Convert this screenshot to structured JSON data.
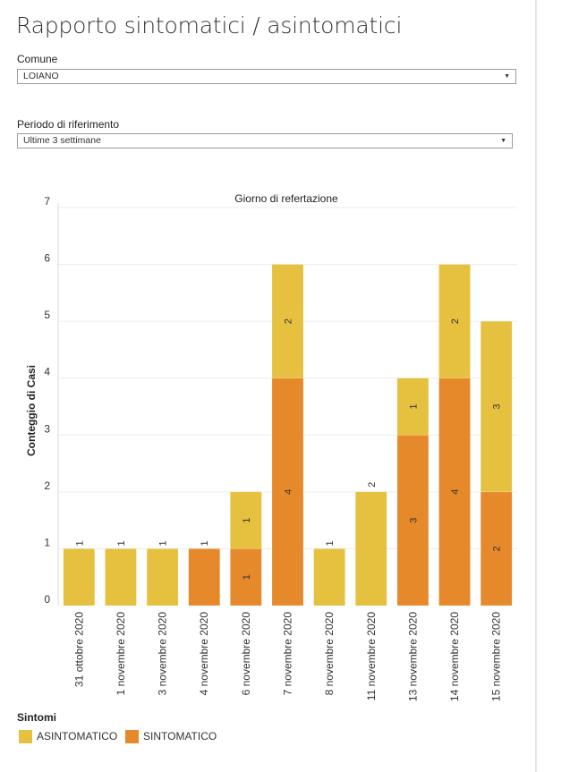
{
  "title": "Rapporto sintomatici / asintomatici",
  "filters": {
    "comune": {
      "label": "Comune",
      "value": "LOIANO"
    },
    "periodo": {
      "label": "Periodo di riferimento",
      "value": "Ultime 3 settimane"
    }
  },
  "legend": {
    "title": "Sintomi",
    "items": [
      {
        "label": "ASINTOMATICO",
        "color": "#E5C13F"
      },
      {
        "label": "SINTOMATICO",
        "color": "#E6892A"
      }
    ]
  },
  "chart_data": {
    "type": "bar",
    "stacked": true,
    "title": "Giorno di refertazione",
    "xlabel": "",
    "ylabel": "Conteggio di Casi",
    "ylim": [
      0,
      7
    ],
    "yticks": [
      0,
      1,
      2,
      3,
      4,
      5,
      6,
      7
    ],
    "grid": true,
    "legend_position": "bottom-left",
    "categories": [
      "31 ottobre 2020",
      "1 novembre 2020",
      "3 novembre 2020",
      "4 novembre 2020",
      "6 novembre 2020",
      "7 novembre 2020",
      "8 novembre 2020",
      "11 novembre 2020",
      "13 novembre 2020",
      "14 novembre 2020",
      "15 novembre 2020"
    ],
    "series": [
      {
        "name": "SINTOMATICO",
        "color": "#E6892A",
        "values": [
          0,
          0,
          0,
          1,
          1,
          4,
          0,
          0,
          3,
          4,
          2
        ]
      },
      {
        "name": "ASINTOMATICO",
        "color": "#E5C13F",
        "values": [
          1,
          1,
          1,
          0,
          1,
          2,
          1,
          2,
          1,
          2,
          3
        ]
      }
    ]
  }
}
